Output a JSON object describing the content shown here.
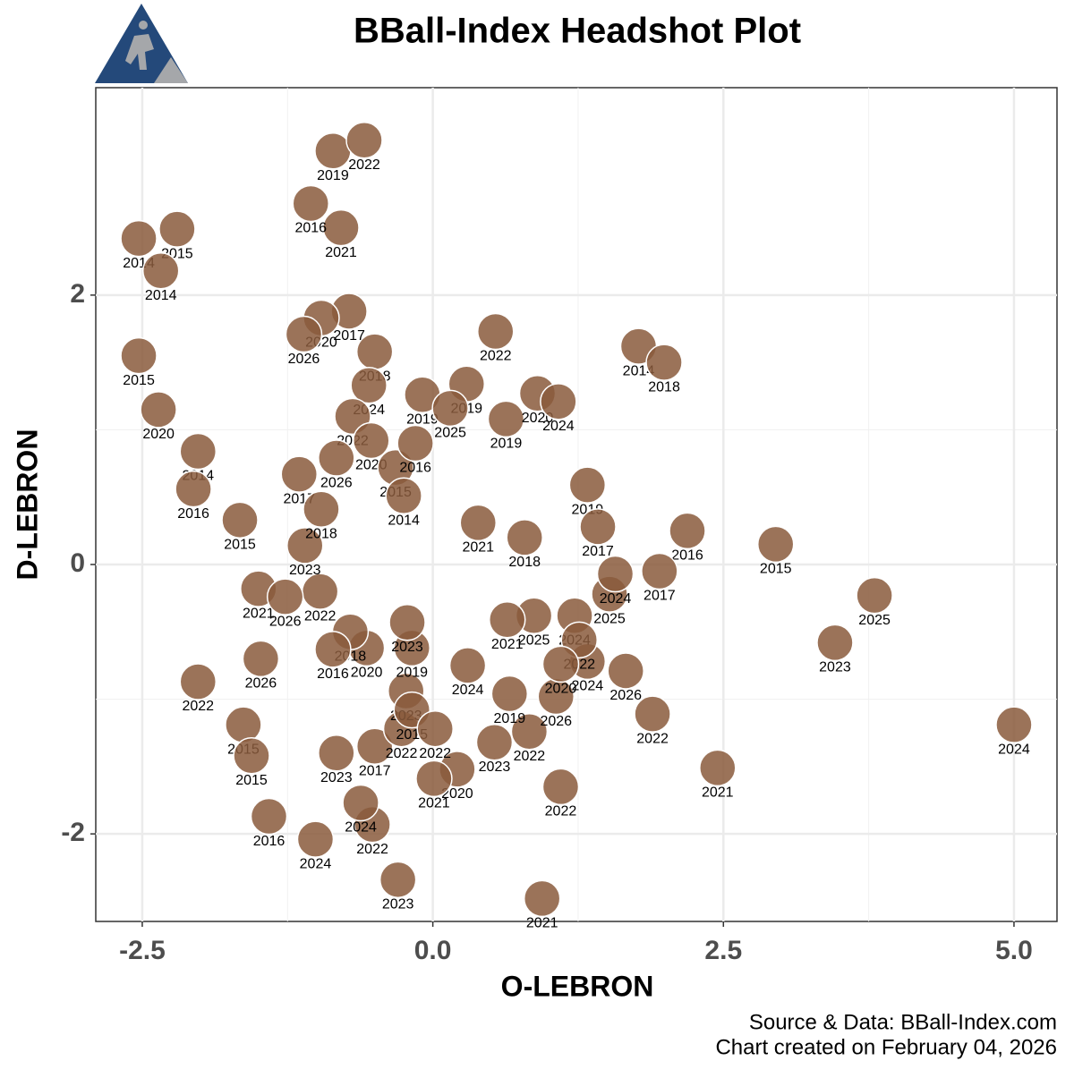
{
  "chart_data": {
    "type": "scatter",
    "title": "BBall-Index Headshot Plot",
    "x_label": "O-LEBRON",
    "y_label": "D-LEBRON",
    "caption": [
      "Source & Data: BBall-Index.com",
      "Chart created on February 04, 2026"
    ],
    "xlim": [
      -2.9,
      5.37
    ],
    "ylim": [
      -2.65,
      3.54
    ],
    "xticks": [
      -2.5,
      {
        "value": 0,
        "label": "0.0"
      },
      2.5,
      {
        "value": 5,
        "label": "5.0"
      }
    ],
    "yticks": [
      -2,
      0,
      2
    ],
    "grid": true,
    "color": "#8a5a3c",
    "x": [
      5.0,
      3.8,
      3.46,
      2.95,
      2.45,
      1.89,
      2.19,
      1.95,
      1.77,
      1.99,
      1.33,
      1.66,
      1.1,
      0.94,
      -0.3,
      -1.01,
      -1.41,
      -0.52,
      -0.62,
      0.21,
      0.01,
      0.53,
      0.83,
      0.66,
      1.06,
      1.33,
      1.52,
      1.57,
      1.42,
      1.22,
      1.26,
      0.63,
      0.9,
      1.08,
      0.29,
      0.54,
      -0.09,
      0.15,
      -0.5,
      -0.55,
      -0.72,
      -0.96,
      -1.11,
      -0.79,
      -1.05,
      -0.86,
      -0.59,
      -2.53,
      -2.2,
      -2.34,
      -2.53,
      -2.36,
      -2.02,
      -2.06,
      -1.66,
      -0.69,
      -0.53,
      -0.32,
      -0.15,
      -1.15,
      0.39,
      0.79,
      -2.02,
      -1.48,
      -1.5,
      -1.63,
      -1.56,
      -0.5,
      -0.83,
      -0.27,
      -0.23,
      -0.18,
      0.02,
      0.87,
      0.64,
      0.3,
      1.1,
      -0.18,
      -0.22,
      -0.57,
      -0.71,
      -0.86,
      -0.97,
      -1.27,
      -1.1,
      -0.96,
      -0.25,
      -0.83
    ],
    "y": [
      -1.19,
      -0.23,
      -0.58,
      0.15,
      -1.51,
      -1.11,
      0.25,
      -0.05,
      1.62,
      1.5,
      0.59,
      -0.79,
      -1.65,
      -2.48,
      -2.34,
      -2.04,
      -1.87,
      -1.93,
      -1.77,
      -1.52,
      -1.59,
      -1.32,
      -1.24,
      -0.96,
      -0.98,
      -0.72,
      -0.22,
      -0.07,
      0.28,
      -0.38,
      -0.56,
      1.08,
      1.27,
      1.21,
      1.34,
      1.73,
      1.26,
      1.16,
      1.58,
      1.33,
      1.88,
      1.83,
      1.71,
      2.5,
      2.68,
      3.07,
      3.15,
      2.42,
      2.49,
      2.18,
      1.55,
      1.15,
      0.84,
      0.56,
      0.33,
      1.1,
      0.92,
      0.72,
      0.9,
      0.67,
      0.31,
      0.2,
      -0.87,
      -0.7,
      -0.18,
      -1.19,
      -1.42,
      -1.35,
      -1.4,
      -1.22,
      -0.94,
      -1.08,
      -1.22,
      -0.38,
      -0.41,
      -0.75,
      -0.74,
      -0.62,
      -0.43,
      -0.62,
      -0.5,
      -0.63,
      -0.2,
      -0.24,
      0.14,
      0.41,
      0.51,
      0.79
    ],
    "labels": [
      "2024",
      "2025",
      "2023",
      "2015",
      "2021",
      "2022",
      "2016",
      "2017",
      "2014",
      "2018",
      "2019",
      "2026",
      "2022",
      "2021",
      "2023",
      "2024",
      "2016",
      "2022",
      "2024",
      "2020",
      "2021",
      "2023",
      "2022",
      "2019",
      "2026",
      "2024",
      "2025",
      "2024",
      "2017",
      "2024",
      "2022",
      "2019",
      "2020",
      "2024",
      "2019",
      "2022",
      "2019",
      "2025",
      "2018",
      "2024",
      "2017",
      "2020",
      "2026",
      "2021",
      "2016",
      "2019",
      "2022",
      "2014",
      "2015",
      "2014",
      "2015",
      "2020",
      "2014",
      "2016",
      "2015",
      "2022",
      "2020",
      "2015",
      "2016",
      "2017",
      "2021",
      "2018",
      "2022",
      "2026",
      "2021",
      "2015",
      "2015",
      "2017",
      "2023",
      "2022",
      "2023",
      "2015",
      "2022",
      "2025",
      "2021",
      "2024",
      "2020",
      "2019",
      "2023",
      "2020",
      "2018",
      "2016",
      "2022",
      "2026",
      "2023",
      "2018",
      "2014",
      "2026"
    ]
  }
}
